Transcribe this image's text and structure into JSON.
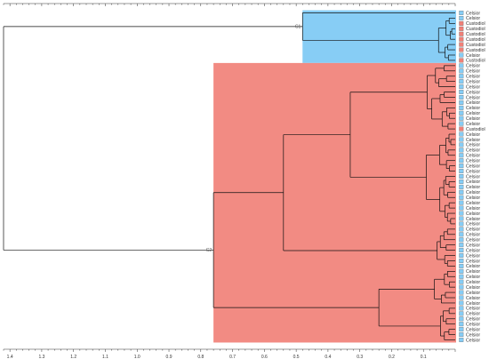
{
  "colors": {
    "cluster_c1_fill": "#87cdf5",
    "cluster_c2_fill": "#f28b83",
    "legend_celsior": "#87cdf5",
    "legend_custodiol": "#f08078",
    "line": "#111111"
  },
  "chart_data": {
    "type": "dendrogram",
    "orientation": "horizontal",
    "x_axis": {
      "reversed": true,
      "ticks": [
        "1.4",
        "1.3",
        "1.2",
        "1.1",
        "1.0",
        "0.9",
        "0.8",
        "0.7",
        "0.6",
        "0.5",
        "0.4",
        "0.3",
        "0.2",
        "0.1"
      ],
      "tick_values": [
        1.4,
        1.3,
        1.2,
        1.1,
        1.0,
        0.9,
        0.8,
        0.7,
        0.6,
        0.5,
        0.4,
        0.3,
        0.2,
        0.1
      ],
      "range": [
        1.42,
        0.0
      ]
    },
    "root_height": 1.42,
    "clusters": [
      {
        "label": "C1",
        "height": 0.48,
        "leaf_count": 10
      },
      {
        "label": "C2",
        "height": 0.76,
        "leaf_count": 53
      }
    ],
    "sub_heights": {
      "c2_inner": 0.54,
      "c2_upper": 0.33,
      "c2_lower": 0.24
    },
    "leaves": [
      "Celsior",
      "Celsior",
      "Custodiol",
      "Custodiol",
      "Custodiol",
      "Custodiol",
      "Custodiol",
      "Custodiol",
      "Celsior",
      "Custodiol",
      "Celsior",
      "Celsior",
      "Celsior",
      "Celsior",
      "Celsior",
      "Celsior",
      "Celsior",
      "Celsior",
      "Celsior",
      "Celsior",
      "Celsior",
      "Celsior",
      "Custodiol",
      "Celsior",
      "Celsior",
      "Celsior",
      "Celsior",
      "Celsior",
      "Celsior",
      "Celsior",
      "Celsior",
      "Celsior",
      "Celsior",
      "Celsior",
      "Celsior",
      "Celsior",
      "Celsior",
      "Celsior",
      "Celsior",
      "Celsior",
      "Celsior",
      "Celsior",
      "Celsior",
      "Celsior",
      "Celsior",
      "Celsior",
      "Celsior",
      "Celsior",
      "Celsior",
      "Celsior",
      "Celsior",
      "Celsior",
      "Celsior",
      "Celsior",
      "Celsior",
      "Celsior",
      "Celsior",
      "Celsior",
      "Celsior",
      "Celsior",
      "Celsior",
      "Celsior",
      "Celsior"
    ]
  }
}
